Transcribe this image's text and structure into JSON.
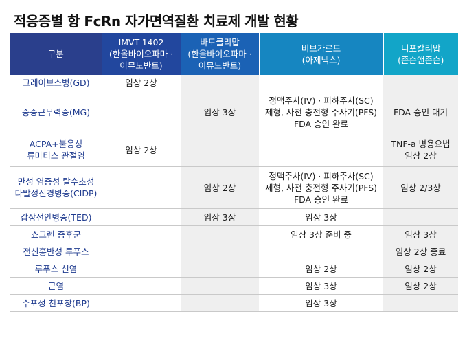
{
  "title": "적응증별 항 FcRn 자가면역질환 치료제 개발 현황",
  "headers": [
    {
      "lines": [
        "구분"
      ]
    },
    {
      "lines": [
        "IMVT-1402",
        "(한올바이오파마 ·",
        "이뮤노반트)"
      ]
    },
    {
      "lines": [
        "바토클리맙",
        "(한올바이오파마 ·",
        "이뮤노반트)"
      ]
    },
    {
      "lines": [
        "비브가르트",
        "(아제넥스)"
      ]
    },
    {
      "lines": [
        "니포칼리맙",
        "(존슨앤존슨)"
      ]
    }
  ],
  "rows": [
    {
      "category": [
        "그레이브스병(GD)"
      ],
      "cells": [
        [
          "임상 2상"
        ],
        [
          ""
        ],
        [
          ""
        ],
        [
          ""
        ]
      ]
    },
    {
      "category": [
        "중증근무력증(MG)"
      ],
      "cells": [
        [
          ""
        ],
        [
          "임상 3상"
        ],
        [
          "정맥주사(IV) · 피하주사(SC)",
          "제형, 사전 충전형 주사기(PFS)",
          "FDA 승인 완료"
        ],
        [
          "FDA 승인 대기"
        ]
      ]
    },
    {
      "category": [
        "ACPA+불응성",
        "류마티스 관절염"
      ],
      "cells": [
        [
          "임상 2상"
        ],
        [
          ""
        ],
        [
          ""
        ],
        [
          "TNF-a 병용요법",
          "임상 2상"
        ]
      ]
    },
    {
      "category": [
        "만성 염증성 탈수초성",
        "다발성신경병증(CIDP)"
      ],
      "cells": [
        [
          ""
        ],
        [
          "임상 2상"
        ],
        [
          "정맥주사(IV) · 피하주사(SC)",
          "제형, 사전 충전형 주사기(PFS)",
          "FDA 승인 완료"
        ],
        [
          "임상 2/3상"
        ]
      ]
    },
    {
      "category": [
        "갑상선안병증(TED)"
      ],
      "cells": [
        [
          ""
        ],
        [
          "임상 3상"
        ],
        [
          "임상 3상"
        ],
        [
          ""
        ]
      ]
    },
    {
      "category": [
        "쇼그렌 증후군"
      ],
      "cells": [
        [
          ""
        ],
        [
          ""
        ],
        [
          "임상 3상 준비 중"
        ],
        [
          "임상 3상"
        ]
      ]
    },
    {
      "category": [
        "전신홍반성 루푸스"
      ],
      "cells": [
        [
          ""
        ],
        [
          ""
        ],
        [
          ""
        ],
        [
          "임상 2상 종료"
        ]
      ]
    },
    {
      "category": [
        "루푸스 신염"
      ],
      "cells": [
        [
          ""
        ],
        [
          ""
        ],
        [
          "임상 2상"
        ],
        [
          "임상 2상"
        ]
      ]
    },
    {
      "category": [
        "근염"
      ],
      "cells": [
        [
          ""
        ],
        [
          ""
        ],
        [
          "임상 3상"
        ],
        [
          "임상 2상"
        ]
      ]
    },
    {
      "category": [
        "수포성 천포창(BP)"
      ],
      "cells": [
        [
          ""
        ],
        [
          ""
        ],
        [
          "임상 3상"
        ],
        [
          ""
        ]
      ]
    }
  ]
}
